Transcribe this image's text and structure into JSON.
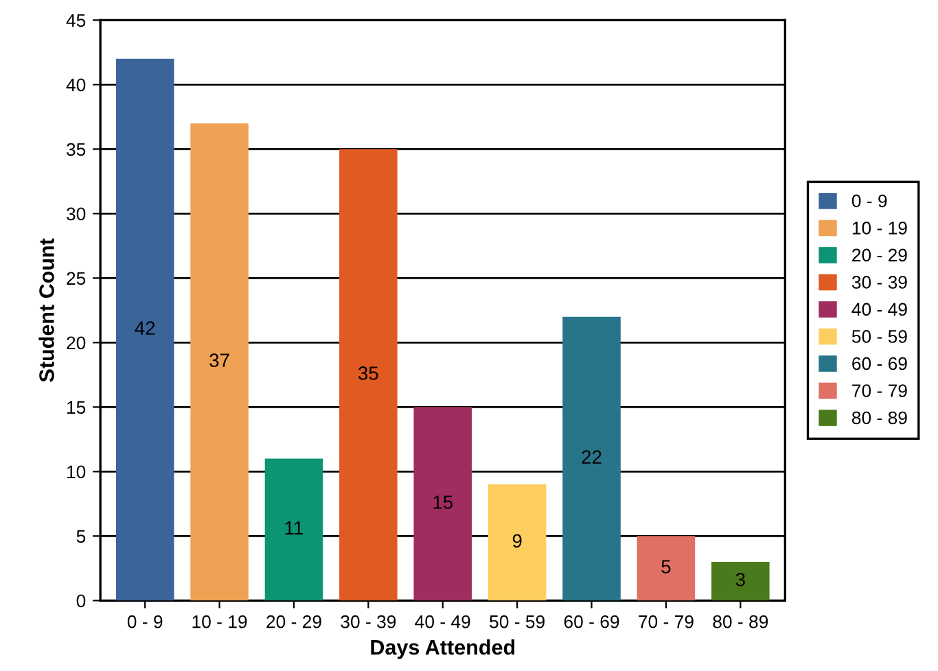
{
  "chart_data": {
    "type": "bar",
    "xlabel": "Days Attended",
    "ylabel": "Student Count",
    "categories": [
      "0 - 9",
      "10 - 19",
      "20 - 29",
      "30 - 39",
      "40 - 49",
      "50 - 59",
      "60 - 69",
      "70 - 79",
      "80 - 89"
    ],
    "series": [
      {
        "name": "0 - 9",
        "color": "#3b6499",
        "values": [
          42,
          null,
          null,
          null,
          null,
          null,
          null,
          null,
          null
        ]
      },
      {
        "name": "10 - 19",
        "color": "#f0a254",
        "values": [
          null,
          37,
          null,
          null,
          null,
          null,
          null,
          null,
          null
        ]
      },
      {
        "name": "20 - 29",
        "color": "#0c9474",
        "values": [
          null,
          null,
          11,
          null,
          null,
          null,
          null,
          null,
          null
        ]
      },
      {
        "name": "30 - 39",
        "color": "#e05a21",
        "values": [
          null,
          null,
          null,
          35,
          null,
          null,
          null,
          null,
          null
        ]
      },
      {
        "name": "40 - 49",
        "color": "#a02d60",
        "values": [
          null,
          null,
          null,
          null,
          15,
          null,
          null,
          null,
          null
        ]
      },
      {
        "name": "50 - 59",
        "color": "#fdcd5f",
        "values": [
          null,
          null,
          null,
          null,
          null,
          9,
          null,
          null,
          null
        ]
      },
      {
        "name": "60 - 69",
        "color": "#28758a",
        "values": [
          null,
          null,
          null,
          null,
          null,
          null,
          22,
          null,
          null
        ]
      },
      {
        "name": "70 - 79",
        "color": "#e07063",
        "values": [
          null,
          null,
          null,
          null,
          null,
          null,
          null,
          5,
          null
        ]
      },
      {
        "name": "80 - 89",
        "color": "#4b7a1c",
        "values": [
          null,
          null,
          null,
          null,
          null,
          null,
          null,
          null,
          3
        ]
      }
    ],
    "ylim": [
      0,
      45
    ],
    "yticks": [
      0,
      5,
      10,
      15,
      20,
      25,
      30,
      35,
      40,
      45
    ],
    "grid": "y",
    "legend": "right",
    "data_labels": true
  }
}
